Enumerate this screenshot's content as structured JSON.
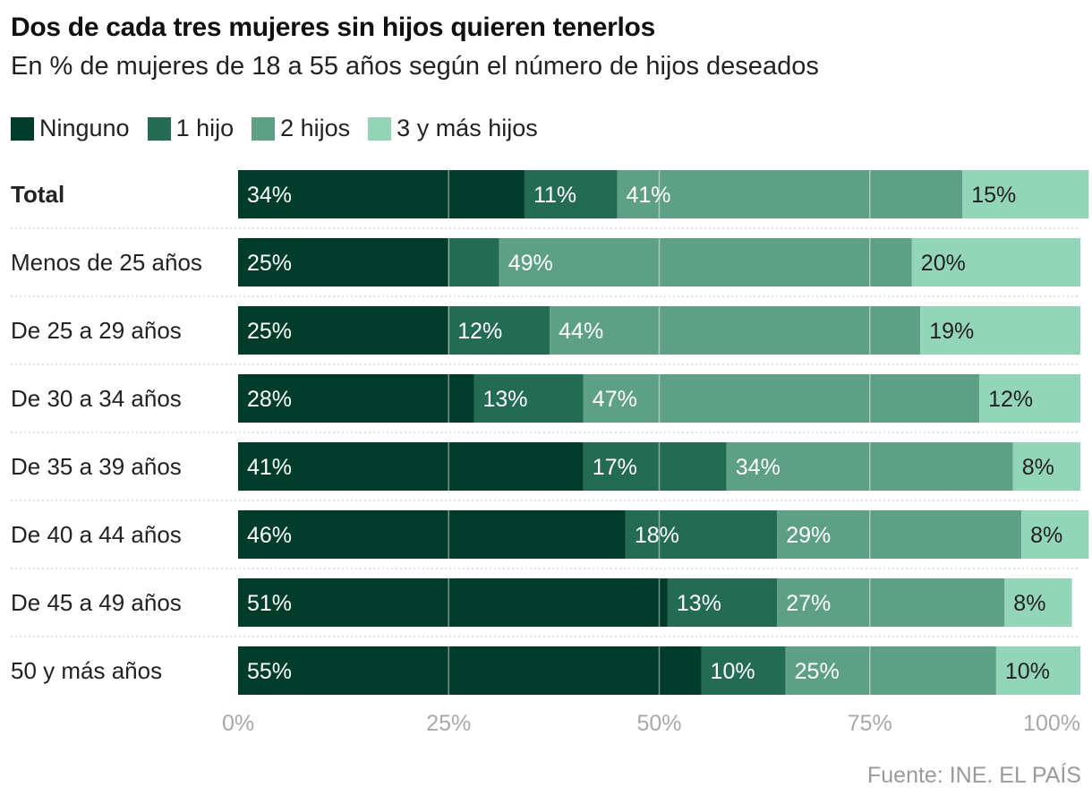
{
  "colors": {
    "ninguno": "#003c2a",
    "uno": "#236b53",
    "dos": "#5da086",
    "tres": "#93d5b9"
  },
  "source": "Fuente: INE. EL PAÍS",
  "chart_data": {
    "type": "bar",
    "orientation": "horizontal",
    "stacked": true,
    "title": "Dos de cada tres mujeres sin hijos quieren tenerlos",
    "subtitle": "En % de mujeres de 18 a 55 años según el número de hijos deseados",
    "categories": [
      "Total",
      "Menos de 25 años",
      "De 25 a 29 años",
      "De 30 a 34 años",
      "De 35 a 39 años",
      "De 40 a 44 años",
      "De 45 a 49 años",
      "50 y más años"
    ],
    "series": [
      {
        "name": "Ninguno",
        "values": [
          34,
          25,
          25,
          28,
          41,
          46,
          51,
          55
        ]
      },
      {
        "name": "1 hijo",
        "values": [
          11,
          6,
          12,
          13,
          17,
          18,
          13,
          10
        ]
      },
      {
        "name": "2 hijos",
        "values": [
          41,
          49,
          44,
          47,
          34,
          29,
          27,
          25
        ]
      },
      {
        "name": "3 y más hijos",
        "values": [
          15,
          20,
          19,
          12,
          8,
          8,
          8,
          10
        ]
      }
    ],
    "data_labels": [
      [
        "34%",
        "11%",
        "41%",
        "15%"
      ],
      [
        "25%",
        "",
        "49%",
        "20%"
      ],
      [
        "25%",
        "12%",
        "44%",
        "19%"
      ],
      [
        "28%",
        "13%",
        "47%",
        "12%"
      ],
      [
        "41%",
        "17%",
        "34%",
        "8%"
      ],
      [
        "46%",
        "18%",
        "29%",
        "8%"
      ],
      [
        "51%",
        "13%",
        "27%",
        "8%"
      ],
      [
        "55%",
        "10%",
        "25%",
        "10%"
      ]
    ],
    "x_ticks": [
      0,
      25,
      50,
      75,
      100
    ],
    "x_tick_labels": [
      "0%",
      "25%",
      "50%",
      "75%",
      "100%"
    ],
    "xlim": [
      0,
      100
    ],
    "xlabel": "",
    "ylabel": "",
    "grid": true,
    "legend_position": "top-left"
  }
}
